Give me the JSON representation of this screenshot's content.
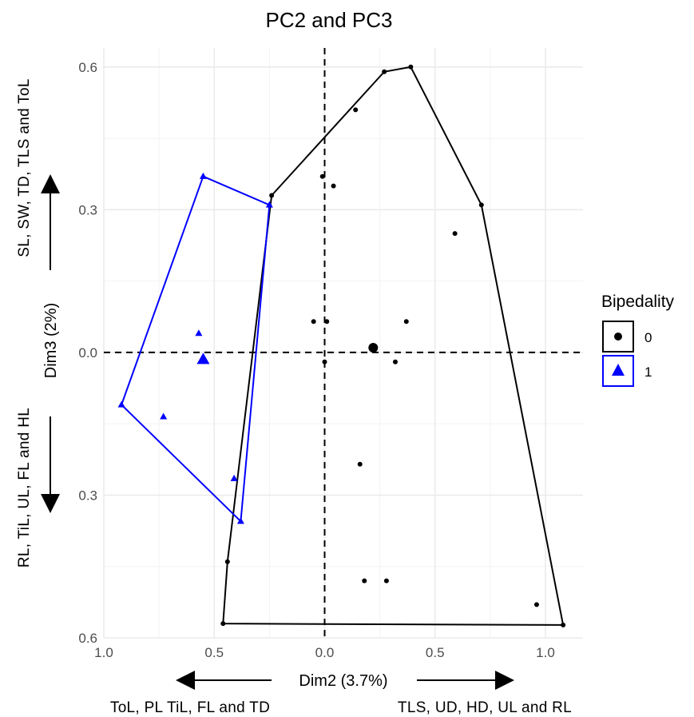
{
  "chart_data": {
    "type": "scatter",
    "title": "PC2 and PC3",
    "xlabel": "Dim2 (3.7%)",
    "ylabel": "Dim3 (2%)",
    "xlim": [
      -1.0,
      1.17
    ],
    "ylim": [
      -0.6,
      0.64
    ],
    "x_ticks": [
      -1.0,
      -0.5,
      0.0,
      0.5,
      1.0
    ],
    "x_tick_labels": [
      "1.0",
      "0.5",
      "0.0",
      "0.5",
      "1.0"
    ],
    "y_ticks": [
      0.6,
      0.3,
      0.0,
      -0.3,
      -0.6
    ],
    "y_tick_labels": [
      "0.6",
      "0.3",
      "0.0",
      "0.3",
      "0.6"
    ],
    "grid": true,
    "reference_lines": {
      "x": 0,
      "y": 0
    },
    "x_direction_labels": {
      "negative": "ToL, PL TiL, FL and TD",
      "positive": "TLS, UD, HD, UL and RL"
    },
    "y_direction_labels": {
      "positive": "SL, SW, TD, TLS and ToL",
      "negative": "RL, TiL, UL, FL and HL"
    },
    "legend": {
      "title": "Bipedality",
      "position": "right"
    },
    "series": [
      {
        "name": "0",
        "color": "#000000",
        "marker": "circle",
        "points": [
          {
            "x": 0.39,
            "y": 0.6
          },
          {
            "x": 0.27,
            "y": 0.59
          },
          {
            "x": 0.14,
            "y": 0.51
          },
          {
            "x": -0.01,
            "y": 0.37
          },
          {
            "x": 0.04,
            "y": 0.35
          },
          {
            "x": -0.24,
            "y": 0.33
          },
          {
            "x": 0.71,
            "y": 0.31
          },
          {
            "x": 0.59,
            "y": 0.25
          },
          {
            "x": -0.05,
            "y": 0.065
          },
          {
            "x": 0.01,
            "y": 0.065
          },
          {
            "x": 0.37,
            "y": 0.065
          },
          {
            "x": 0.22,
            "y": 0.01,
            "large": true
          },
          {
            "x": 0.0,
            "y": -0.02
          },
          {
            "x": 0.32,
            "y": -0.02
          },
          {
            "x": 0.16,
            "y": -0.235
          },
          {
            "x": -0.44,
            "y": -0.44
          },
          {
            "x": 0.18,
            "y": -0.48
          },
          {
            "x": 0.28,
            "y": -0.48
          },
          {
            "x": 0.96,
            "y": -0.53
          },
          {
            "x": -0.46,
            "y": -0.57
          },
          {
            "x": 1.08,
            "y": -0.573
          }
        ],
        "hull": [
          {
            "x": 0.39,
            "y": 0.6
          },
          {
            "x": 0.71,
            "y": 0.31
          },
          {
            "x": 1.08,
            "y": -0.573
          },
          {
            "x": -0.46,
            "y": -0.57
          },
          {
            "x": -0.44,
            "y": -0.44
          },
          {
            "x": -0.24,
            "y": 0.33
          },
          {
            "x": 0.27,
            "y": 0.59
          }
        ]
      },
      {
        "name": "1",
        "color": "#0000ff",
        "marker": "triangle",
        "points": [
          {
            "x": -0.55,
            "y": 0.37
          },
          {
            "x": -0.25,
            "y": 0.31
          },
          {
            "x": -0.57,
            "y": 0.04
          },
          {
            "x": -0.55,
            "y": -0.01
          },
          {
            "x": -0.55,
            "y": -0.015,
            "large": true
          },
          {
            "x": -0.92,
            "y": -0.11
          },
          {
            "x": -0.73,
            "y": -0.135
          },
          {
            "x": -0.41,
            "y": -0.265
          },
          {
            "x": -0.38,
            "y": -0.355
          }
        ],
        "hull": [
          {
            "x": -0.55,
            "y": 0.37
          },
          {
            "x": -0.25,
            "y": 0.31
          },
          {
            "x": -0.38,
            "y": -0.355
          },
          {
            "x": -0.92,
            "y": -0.11
          }
        ]
      }
    ]
  }
}
